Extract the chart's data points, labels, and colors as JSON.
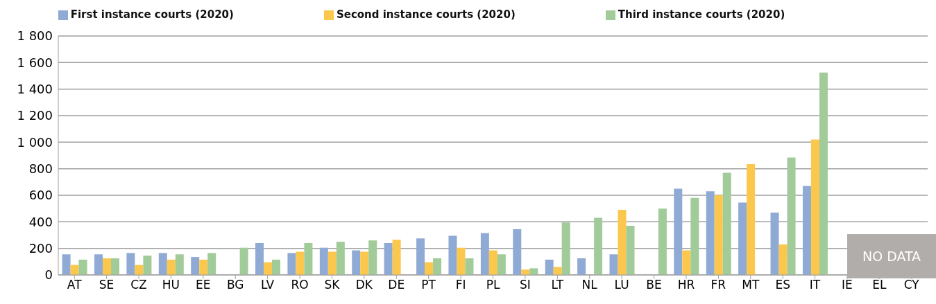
{
  "chart_data": {
    "type": "bar",
    "categories": [
      "AT",
      "SE",
      "CZ",
      "HU",
      "EE",
      "BG",
      "LV",
      "RO",
      "SK",
      "DK",
      "DE",
      "PT",
      "FI",
      "PL",
      "SI",
      "LT",
      "NL",
      "LU",
      "BE",
      "HR",
      "FR",
      "MT",
      "ES",
      "IT",
      "IE",
      "EL",
      "CY"
    ],
    "series": [
      {
        "name": "First instance courts (2020)",
        "color": "#8faad4",
        "values": [
          155,
          155,
          165,
          165,
          135,
          null,
          240,
          165,
          205,
          185,
          240,
          275,
          295,
          315,
          345,
          115,
          125,
          155,
          null,
          650,
          630,
          545,
          470,
          670,
          null,
          null,
          null
        ]
      },
      {
        "name": "Second instance courts (2020)",
        "color": "#fcc74d",
        "values": [
          75,
          125,
          75,
          115,
          115,
          null,
          95,
          175,
          175,
          175,
          265,
          95,
          205,
          185,
          40,
          60,
          null,
          490,
          null,
          185,
          600,
          835,
          230,
          1020,
          null,
          null,
          null
        ]
      },
      {
        "name": "Third instance courts (2020)",
        "color": "#a1cb99",
        "values": [
          115,
          125,
          145,
          155,
          165,
          205,
          115,
          240,
          250,
          260,
          null,
          125,
          125,
          155,
          50,
          395,
          430,
          370,
          500,
          580,
          770,
          null,
          885,
          1525,
          null,
          null,
          null
        ]
      }
    ],
    "ylim": [
      0,
      1800
    ],
    "yticks": [
      0,
      200,
      400,
      600,
      800,
      {
        "value": 1000,
        "label": "1 000"
      },
      {
        "value": 1200,
        "label": "1 200"
      },
      {
        "value": 1400,
        "label": "1 400"
      },
      {
        "value": 1600,
        "label": "1 600"
      },
      {
        "value": 1800,
        "label": "1 800"
      }
    ],
    "grid": "y",
    "legend": "top",
    "annotations": [
      "NO DATA"
    ]
  }
}
